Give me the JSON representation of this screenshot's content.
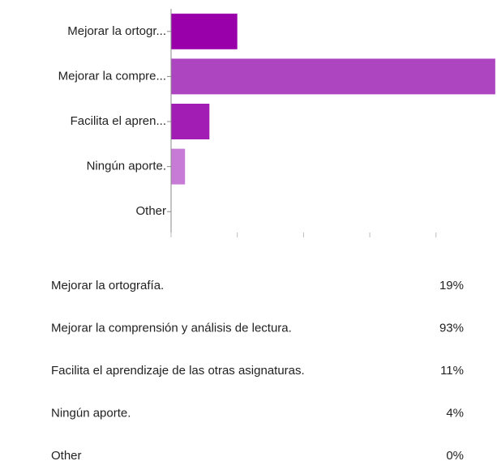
{
  "chart_data": {
    "type": "bar",
    "orientation": "horizontal",
    "categories": [
      "Mejorar la ortogr...",
      "Mejorar la compre...",
      "Facilita el apren...",
      "Ningún aporte.",
      "Other"
    ],
    "values": [
      19,
      93,
      11,
      4,
      0
    ],
    "colors": [
      "#9900aa",
      "#ad45c1",
      "#a11db3",
      "#c77ad6",
      "#c9a0d9"
    ],
    "xlim": [
      0,
      93.5
    ],
    "xticks": [
      0,
      19,
      38,
      57,
      76
    ]
  },
  "table": {
    "rows": [
      [
        "Mejorar la ortografía.",
        "19%"
      ],
      [
        "Mejorar la comprensión y análisis de lectura.",
        "93%"
      ],
      [
        "Facilita el aprendizaje de las otras asignaturas.",
        "11%"
      ],
      [
        "Ningún aporte.",
        "4%"
      ],
      [
        "Other",
        "0%"
      ]
    ]
  }
}
